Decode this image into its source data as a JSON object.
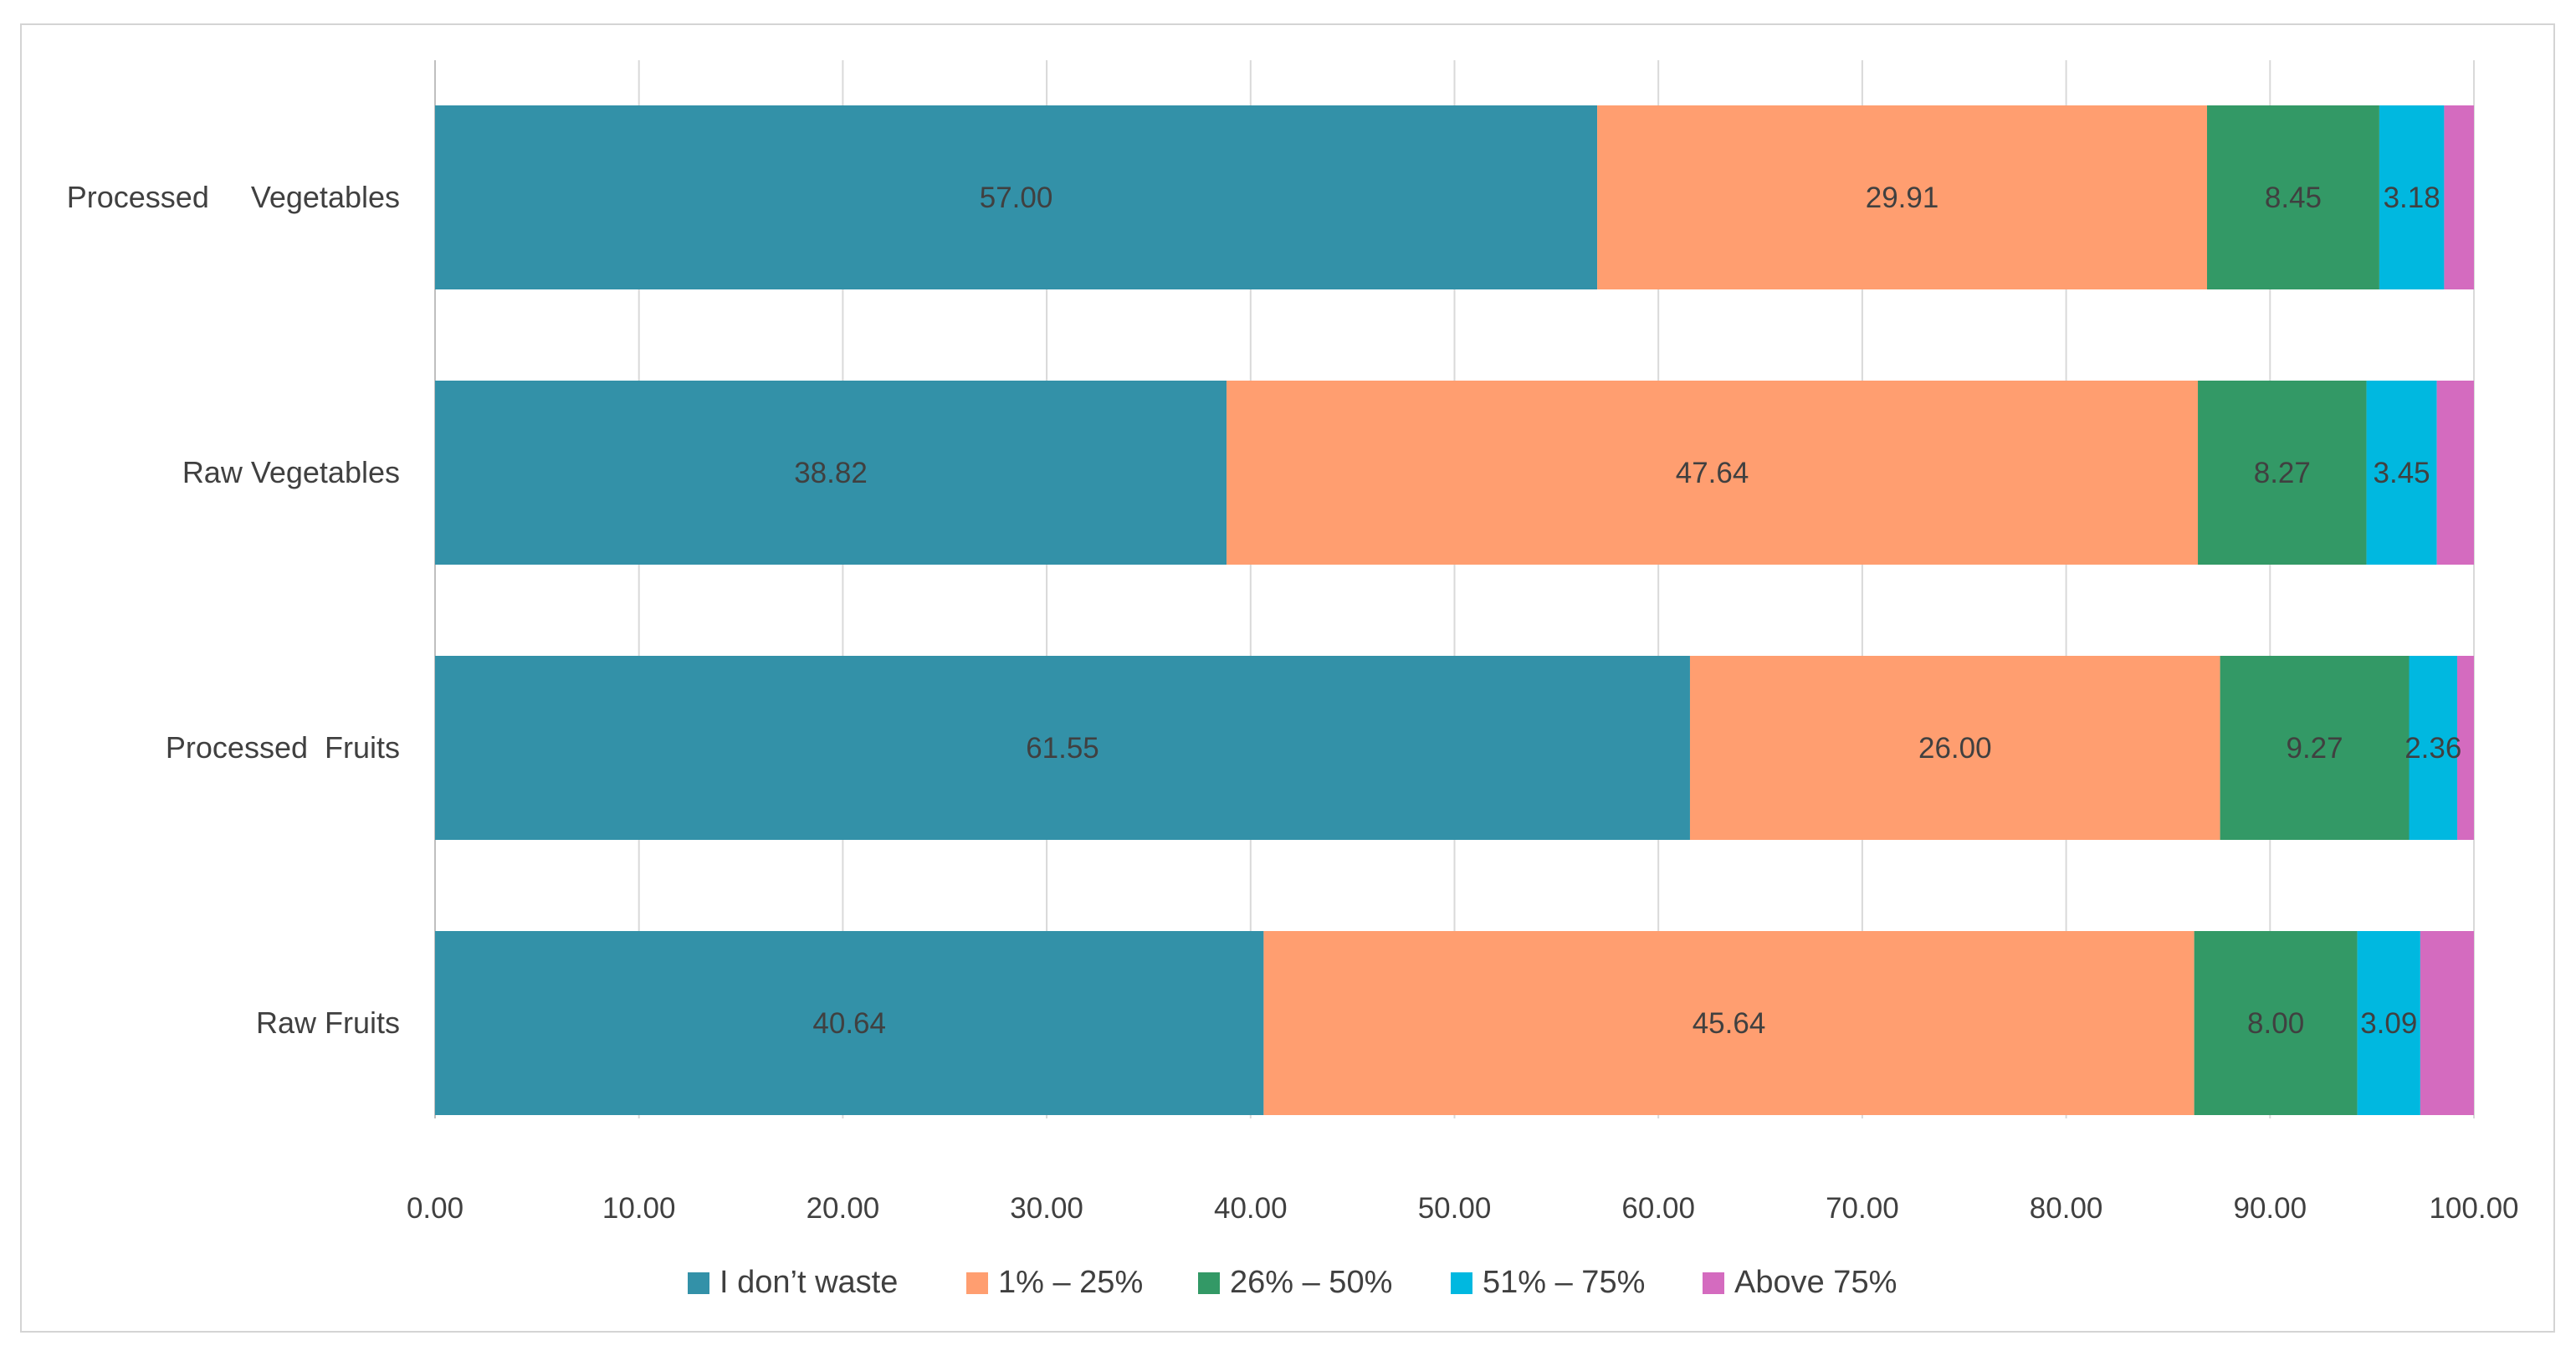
{
  "chart_data": {
    "type": "bar",
    "orientation": "horizontal",
    "stacked": true,
    "categories": [
      "Processed     Vegetables",
      "Raw Vegetables",
      "Processed  Fruits",
      "Raw Fruits"
    ],
    "series": [
      {
        "name": "I don’t waste",
        "color": "#3391A8",
        "values": [
          57.0,
          38.82,
          61.55,
          40.64
        ],
        "labels": [
          "57.00",
          "38.82",
          "61.55",
          "40.64"
        ]
      },
      {
        "name": "1% – 25%",
        "color": "#FF9E70",
        "values": [
          29.91,
          47.64,
          26.0,
          45.64
        ],
        "labels": [
          "29.91",
          "47.64",
          "26.00",
          "45.64"
        ]
      },
      {
        "name": "26% – 50%",
        "color": "#339966",
        "values": [
          8.45,
          8.27,
          9.27,
          8.0
        ],
        "labels": [
          "8.45",
          "8.27",
          "9.27",
          "8.00"
        ]
      },
      {
        "name": "51% – 75%",
        "color": "#00B8E0",
        "values": [
          3.18,
          3.45,
          2.36,
          3.09
        ],
        "labels": [
          "3.18",
          "3.45",
          "2.36",
          "3.09"
        ]
      },
      {
        "name": "Above 75%",
        "color": "#D46BBF",
        "values": [
          1.46,
          1.82,
          0.82,
          2.63
        ],
        "labels": [
          "",
          "",
          "",
          ""
        ]
      }
    ],
    "xlim": [
      0,
      100
    ],
    "xticks": [
      "0.00",
      "10.00",
      "20.00",
      "30.00",
      "40.00",
      "50.00",
      "60.00",
      "70.00",
      "80.00",
      "90.00",
      "100.00"
    ],
    "grid": true,
    "legend_position": "bottom",
    "title": "",
    "xlabel": "",
    "ylabel": ""
  }
}
